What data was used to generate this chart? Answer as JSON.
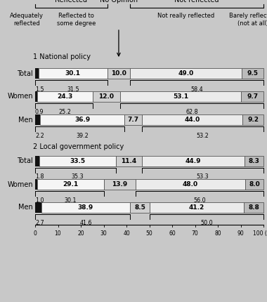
{
  "background_color": "#c8c8c8",
  "sections": [
    {
      "title": "1 National policy",
      "rows": [
        {
          "label": "Total",
          "segments": [
            1.5,
            30.1,
            10.0,
            49.0,
            9.5
          ],
          "brace_left_val": "1.5",
          "brace_left_span": "31.5",
          "brace_right_span": "58.4"
        },
        {
          "label": "Women",
          "segments": [
            0.9,
            24.3,
            12.0,
            53.1,
            9.7
          ],
          "brace_left_val": "0.9",
          "brace_left_span": "25.2",
          "brace_right_span": "62.8"
        },
        {
          "label": "Men",
          "segments": [
            2.2,
            36.9,
            7.7,
            44.0,
            9.2
          ],
          "brace_left_val": "2.2",
          "brace_left_span": "39.2",
          "brace_right_span": "53.2"
        }
      ]
    },
    {
      "title": "2 Local government policy",
      "rows": [
        {
          "label": "Total",
          "segments": [
            1.8,
            33.5,
            11.4,
            44.9,
            8.3
          ],
          "brace_left_val": "1.8",
          "brace_left_span": "35.3",
          "brace_right_span": "53.3"
        },
        {
          "label": "Women",
          "segments": [
            1.0,
            29.1,
            13.9,
            48.0,
            8.0
          ],
          "brace_left_val": "1.0",
          "brace_left_span": "30.1",
          "brace_right_span": "56.0"
        },
        {
          "label": "Men",
          "segments": [
            2.7,
            38.9,
            8.5,
            41.2,
            8.8
          ],
          "brace_left_val": "2.7",
          "brace_left_span": "41.6",
          "brace_right_span": "50.0"
        }
      ]
    }
  ],
  "colors": [
    "#111111",
    "#f5f5f5",
    "#d8d8d8",
    "#eeeeee",
    "#c0c0c0"
  ],
  "top_labels": [
    "Reflected",
    "No Opinion",
    "Not reflected"
  ],
  "col_labels": [
    "Adequately\nreflected",
    "Reflected to\nsome degree",
    "Not really reflected",
    "Barely reflected\n(not at all)"
  ],
  "ticks": [
    0,
    10,
    20,
    30,
    40,
    50,
    60,
    70,
    80,
    90,
    100
  ]
}
